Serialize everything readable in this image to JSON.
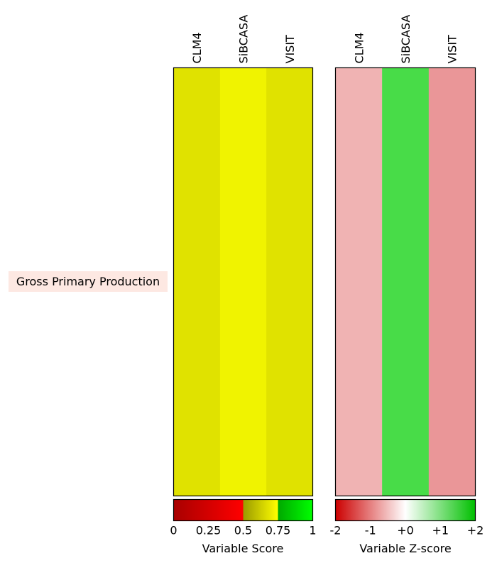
{
  "chart_data": {
    "type": "heatmap",
    "row_label": "Gross Primary Production",
    "panels": [
      {
        "models": [
          "CLM4",
          "SiBCASA",
          "VISIT"
        ],
        "cell_colors": [
          "#e0e200",
          "#f0f300",
          "#e0e200"
        ],
        "colorbar": {
          "label": "Variable Score",
          "ticks": [
            "0",
            "0.25",
            "0.5",
            "0.75",
            "1"
          ],
          "tick_values": [
            0,
            0.25,
            0.5,
            0.75,
            1
          ],
          "range": [
            0,
            1
          ]
        }
      },
      {
        "models": [
          "CLM4",
          "SiBCASA",
          "VISIT"
        ],
        "cell_colors": [
          "#f0b3b3",
          "#48dc48",
          "#ea9698"
        ],
        "colorbar": {
          "label": "Variable Z-score",
          "ticks": [
            "-2",
            "-1",
            "+0",
            "+1",
            "+2"
          ],
          "tick_values": [
            -2,
            -1,
            0,
            1,
            2
          ],
          "range": [
            -2,
            2
          ]
        }
      }
    ]
  }
}
